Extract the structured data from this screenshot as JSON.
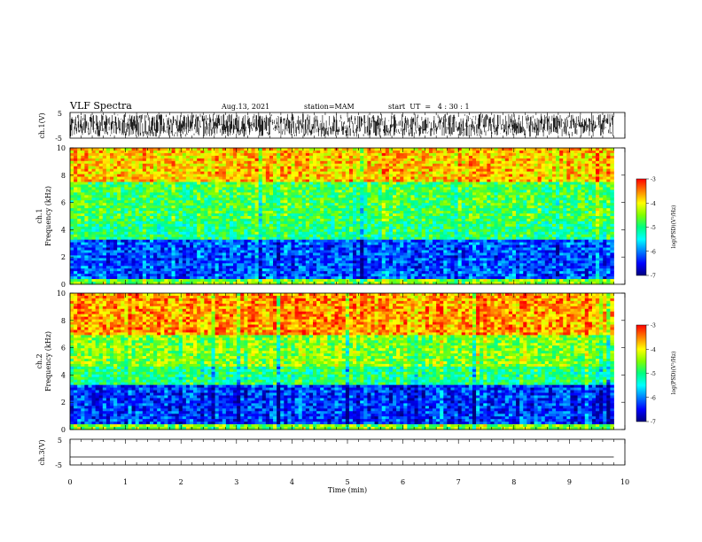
{
  "header": {
    "title": "VLF Spectra",
    "date": "Aug.13, 2021",
    "station": "station=MAM",
    "start": "start  UT  =   4 : 30 : 1"
  },
  "chart_data": [
    {
      "type": "line",
      "id": "ch1-waveform",
      "ylabel": "ch.1(V)",
      "ylim": [
        -5,
        5
      ],
      "yticks": [
        "5",
        "-5"
      ],
      "description_values": {
        "amplitude_range_V": [
          -4.5,
          4.5
        ]
      }
    },
    {
      "type": "heatmap",
      "id": "ch1-spectrogram",
      "ylabel_line1": "ch.1",
      "ylabel_line2": "Frequency (kHz)",
      "ylim": [
        0,
        10
      ],
      "yticks": [
        "0",
        "2",
        "4",
        "6",
        "8",
        "10"
      ],
      "bands_kHz_log_psd": [
        {
          "from": 0.0,
          "to": 0.3,
          "level": -4.5
        },
        {
          "from": 0.3,
          "to": 3.2,
          "level": -6.2
        },
        {
          "from": 3.2,
          "to": 4.6,
          "level": -5.0
        },
        {
          "from": 4.6,
          "to": 7.5,
          "level": -4.8
        },
        {
          "from": 7.5,
          "to": 10.0,
          "level": -3.8
        }
      ],
      "colorbar": {
        "label": "log(PSD)(V²/Hz)",
        "ticks": [
          "-3",
          "-4",
          "-5",
          "-6",
          "-7"
        ],
        "range": [
          -7,
          -3
        ]
      }
    },
    {
      "type": "heatmap",
      "id": "ch2-spectrogram",
      "ylabel_line1": "ch.2",
      "ylabel_line2": "Frequency (kHz)",
      "ylim": [
        0,
        10
      ],
      "yticks": [
        "0",
        "2",
        "4",
        "6",
        "8",
        "10"
      ],
      "bands_kHz_log_psd": [
        {
          "from": 0.0,
          "to": 0.4,
          "level": -4.5
        },
        {
          "from": 0.4,
          "to": 3.2,
          "level": -6.3
        },
        {
          "from": 3.2,
          "to": 4.6,
          "level": -5.0
        },
        {
          "from": 4.6,
          "to": 7.0,
          "level": -4.5
        },
        {
          "from": 7.0,
          "to": 10.0,
          "level": -3.6
        }
      ],
      "colorbar": {
        "label": "log(PSD)(V²/Hz)",
        "ticks": [
          "-3",
          "-4",
          "-5",
          "-6",
          "-7"
        ],
        "range": [
          -7,
          -3
        ]
      }
    },
    {
      "type": "line",
      "id": "ch3-waveform",
      "ylabel": "ch.3(V)",
      "ylim": [
        -5,
        5
      ],
      "yticks": [
        "5",
        "-5"
      ],
      "values_V": [
        -1.9,
        -1.9
      ]
    }
  ],
  "xaxis": {
    "label": "Time (min)",
    "xlim": [
      0,
      10
    ],
    "ticks": [
      "0",
      "1",
      "2",
      "3",
      "4",
      "5",
      "6",
      "7",
      "8",
      "9",
      "10"
    ],
    "data_end_min": 9.8
  },
  "colormap": [
    "#000080",
    "#0000ff",
    "#0080ff",
    "#00ffff",
    "#00ff80",
    "#80ff00",
    "#ffff00",
    "#ff8000",
    "#ff0000"
  ]
}
